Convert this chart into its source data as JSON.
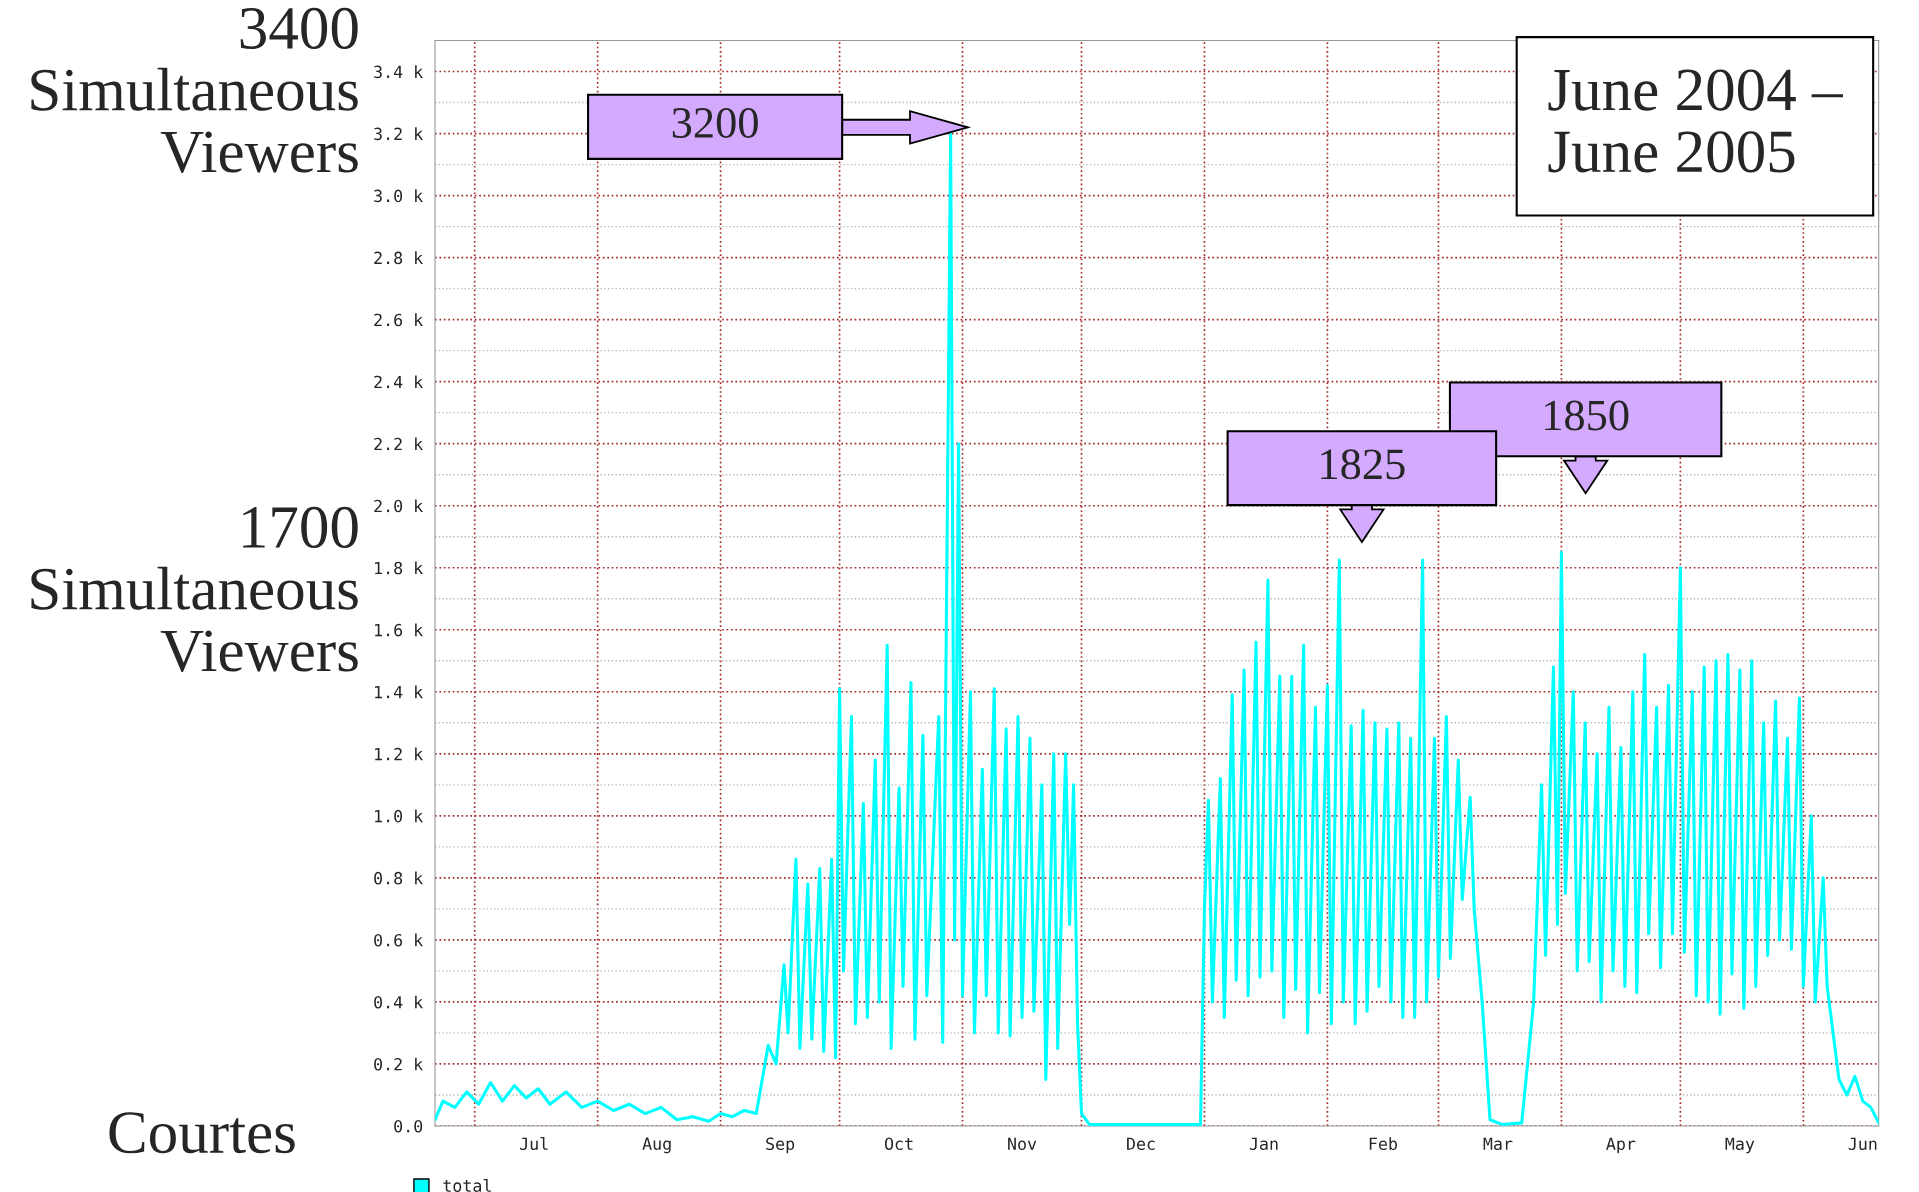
{
  "chart_data": {
    "type": "line",
    "xlim": [
      "2004-06-21",
      "2005-06-20"
    ],
    "xticks": [
      {
        "value": "2004-07-01",
        "label": null
      },
      {
        "value": "2004-07-16",
        "label": "Jul"
      },
      {
        "value": "2004-08-01",
        "label": null
      },
      {
        "value": "2004-08-16",
        "label": "Aug"
      },
      {
        "value": "2004-09-01",
        "label": null
      },
      {
        "value": "2004-09-16",
        "label": "Sep"
      },
      {
        "value": "2004-10-01",
        "label": null
      },
      {
        "value": "2004-10-16",
        "label": "Oct"
      },
      {
        "value": "2004-11-01",
        "label": null
      },
      {
        "value": "2004-11-16",
        "label": "Nov"
      },
      {
        "value": "2004-12-01",
        "label": null
      },
      {
        "value": "2004-12-16",
        "label": "Dec"
      },
      {
        "value": "2005-01-01",
        "label": null
      },
      {
        "value": "2005-01-16",
        "label": "Jan"
      },
      {
        "value": "2005-02-01",
        "label": null
      },
      {
        "value": "2005-02-15",
        "label": "Feb"
      },
      {
        "value": "2005-03-01",
        "label": null
      },
      {
        "value": "2005-03-16",
        "label": "Mar"
      },
      {
        "value": "2005-04-01",
        "label": null
      },
      {
        "value": "2005-04-16",
        "label": "Apr"
      },
      {
        "value": "2005-05-01",
        "label": null
      },
      {
        "value": "2005-05-16",
        "label": "May"
      },
      {
        "value": "2005-06-01",
        "label": null
      },
      {
        "value": "2005-06-16",
        "label": "Jun"
      }
    ],
    "ylim": [
      0,
      3500
    ],
    "yticks": [
      {
        "value": 0,
        "label": "0.0"
      },
      {
        "value": 100,
        "label": null
      },
      {
        "value": 200,
        "label": "0.2 k"
      },
      {
        "value": 300,
        "label": null
      },
      {
        "value": 400,
        "label": "0.4 k"
      },
      {
        "value": 500,
        "label": null
      },
      {
        "value": 600,
        "label": "0.6 k"
      },
      {
        "value": 700,
        "label": null
      },
      {
        "value": 800,
        "label": "0.8 k"
      },
      {
        "value": 900,
        "label": null
      },
      {
        "value": 1000,
        "label": "1.0 k"
      },
      {
        "value": 1100,
        "label": null
      },
      {
        "value": 1200,
        "label": "1.2 k"
      },
      {
        "value": 1300,
        "label": null
      },
      {
        "value": 1400,
        "label": "1.4 k"
      },
      {
        "value": 1500,
        "label": null
      },
      {
        "value": 1600,
        "label": "1.6 k"
      },
      {
        "value": 1700,
        "label": null
      },
      {
        "value": 1800,
        "label": "1.8 k"
      },
      {
        "value": 1900,
        "label": null
      },
      {
        "value": 2000,
        "label": "2.0 k"
      },
      {
        "value": 2100,
        "label": null
      },
      {
        "value": 2200,
        "label": "2.2 k"
      },
      {
        "value": 2300,
        "label": null
      },
      {
        "value": 2400,
        "label": "2.4 k"
      },
      {
        "value": 2500,
        "label": null
      },
      {
        "value": 2600,
        "label": "2.6 k"
      },
      {
        "value": 2700,
        "label": null
      },
      {
        "value": 2800,
        "label": "2.8 k"
      },
      {
        "value": 2900,
        "label": null
      },
      {
        "value": 3000,
        "label": "3.0 k"
      },
      {
        "value": 3100,
        "label": null
      },
      {
        "value": 3200,
        "label": "3.2 k"
      },
      {
        "value": 3300,
        "label": null
      },
      {
        "value": 3400,
        "label": "3.4 k"
      }
    ],
    "grid": true,
    "legend": "bottom left",
    "annotations": [
      "3400\nSimultaneous\nViewers",
      "1700\nSimultaneous\nViewers",
      "June 2004 –\nJune 2005",
      "Courtes",
      "3200",
      "1825",
      "1850"
    ],
    "series": [
      {
        "name": "total",
        "color": "#00ffff",
        "x": [
          "2004-06-21",
          "2004-06-23",
          "2004-06-26",
          "2004-06-29",
          "2004-07-02",
          "2004-07-05",
          "2004-07-08",
          "2004-07-11",
          "2004-07-14",
          "2004-07-17",
          "2004-07-20",
          "2004-07-24",
          "2004-07-28",
          "2004-08-01",
          "2004-08-05",
          "2004-08-09",
          "2004-08-13",
          "2004-08-17",
          "2004-08-21",
          "2004-08-25",
          "2004-08-29",
          "2004-09-01",
          "2004-09-04",
          "2004-09-07",
          "2004-09-10",
          "2004-09-13",
          "2004-09-15",
          "2004-09-17",
          "2004-09-18",
          "2004-09-20",
          "2004-09-21",
          "2004-09-23",
          "2004-09-24",
          "2004-09-26",
          "2004-09-27",
          "2004-09-29",
          "2004-09-30",
          "2004-10-01",
          "2004-10-02",
          "2004-10-04",
          "2004-10-05",
          "2004-10-07",
          "2004-10-08",
          "2004-10-10",
          "2004-10-11",
          "2004-10-13",
          "2004-10-14",
          "2004-10-16",
          "2004-10-17",
          "2004-10-19",
          "2004-10-20",
          "2004-10-22",
          "2004-10-23",
          "2004-10-26",
          "2004-10-27",
          "2004-10-29",
          "2004-10-30",
          "2004-10-31",
          "2004-11-01",
          "2004-11-03",
          "2004-11-04",
          "2004-11-06",
          "2004-11-07",
          "2004-11-09",
          "2004-11-10",
          "2004-11-12",
          "2004-11-13",
          "2004-11-15",
          "2004-11-16",
          "2004-11-18",
          "2004-11-19",
          "2004-11-21",
          "2004-11-22",
          "2004-11-24",
          "2004-11-25",
          "2004-11-27",
          "2004-11-28",
          "2004-11-29",
          "2004-11-30",
          "2004-12-01",
          "2004-12-03",
          "2004-12-15",
          "2004-12-31",
          "2005-01-01",
          "2005-01-02",
          "2005-01-03",
          "2005-01-05",
          "2005-01-06",
          "2005-01-08",
          "2005-01-09",
          "2005-01-11",
          "2005-01-12",
          "2005-01-14",
          "2005-01-15",
          "2005-01-17",
          "2005-01-18",
          "2005-01-20",
          "2005-01-21",
          "2005-01-23",
          "2005-01-24",
          "2005-01-26",
          "2005-01-27",
          "2005-01-29",
          "2005-01-30",
          "2005-02-01",
          "2005-02-02",
          "2005-02-04",
          "2005-02-05",
          "2005-02-07",
          "2005-02-08",
          "2005-02-10",
          "2005-02-11",
          "2005-02-13",
          "2005-02-14",
          "2005-02-16",
          "2005-02-17",
          "2005-02-19",
          "2005-02-20",
          "2005-02-22",
          "2005-02-23",
          "2005-02-25",
          "2005-02-26",
          "2005-02-28",
          "2005-03-01",
          "2005-03-03",
          "2005-03-04",
          "2005-03-06",
          "2005-03-07",
          "2005-03-09",
          "2005-03-10",
          "2005-03-12",
          "2005-03-14",
          "2005-03-17",
          "2005-03-22",
          "2005-03-25",
          "2005-03-27",
          "2005-03-28",
          "2005-03-30",
          "2005-03-31",
          "2005-04-01",
          "2005-04-02",
          "2005-04-04",
          "2005-04-05",
          "2005-04-07",
          "2005-04-08",
          "2005-04-10",
          "2005-04-11",
          "2005-04-13",
          "2005-04-14",
          "2005-04-16",
          "2005-04-17",
          "2005-04-19",
          "2005-04-20",
          "2005-04-22",
          "2005-04-23",
          "2005-04-25",
          "2005-04-26",
          "2005-04-28",
          "2005-04-29",
          "2005-05-01",
          "2005-05-02",
          "2005-05-04",
          "2005-05-05",
          "2005-05-07",
          "2005-05-08",
          "2005-05-10",
          "2005-05-11",
          "2005-05-13",
          "2005-05-14",
          "2005-05-16",
          "2005-05-17",
          "2005-05-19",
          "2005-05-20",
          "2005-05-22",
          "2005-05-23",
          "2005-05-25",
          "2005-05-26",
          "2005-05-28",
          "2005-05-29",
          "2005-05-31",
          "2005-06-01",
          "2005-06-03",
          "2005-06-04",
          "2005-06-06",
          "2005-06-07",
          "2005-06-09",
          "2005-06-10",
          "2005-06-12",
          "2005-06-14",
          "2005-06-16",
          "2005-06-18",
          "2005-06-20"
        ],
        "values": [
          20,
          80,
          60,
          110,
          70,
          140,
          80,
          130,
          90,
          120,
          70,
          110,
          60,
          80,
          50,
          70,
          40,
          60,
          20,
          30,
          15,
          40,
          30,
          50,
          40,
          260,
          200,
          520,
          300,
          860,
          250,
          780,
          280,
          830,
          240,
          860,
          220,
          1410,
          500,
          1320,
          330,
          1040,
          350,
          1180,
          400,
          1550,
          250,
          1090,
          450,
          1430,
          280,
          1260,
          420,
          1320,
          270,
          3200,
          600,
          2200,
          420,
          1400,
          300,
          1150,
          420,
          1410,
          300,
          1280,
          290,
          1320,
          350,
          1250,
          370,
          1100,
          150,
          1200,
          250,
          1200,
          650,
          1100,
          330,
          40,
          5,
          5,
          5,
          700,
          1050,
          400,
          1120,
          350,
          1390,
          470,
          1470,
          420,
          1560,
          480,
          1760,
          500,
          1450,
          350,
          1450,
          440,
          1550,
          300,
          1350,
          430,
          1420,
          330,
          1825,
          400,
          1290,
          330,
          1340,
          370,
          1300,
          450,
          1280,
          400,
          1300,
          350,
          1250,
          350,
          1825,
          400,
          1250,
          480,
          1320,
          540,
          1180,
          730,
          1060,
          700,
          400,
          20,
          5,
          10,
          400,
          1100,
          550,
          1480,
          650,
          1850,
          750,
          1400,
          500,
          1300,
          530,
          1200,
          400,
          1350,
          500,
          1220,
          450,
          1400,
          430,
          1520,
          620,
          1350,
          510,
          1420,
          620,
          1800,
          560,
          1400,
          420,
          1480,
          400,
          1500,
          360,
          1520,
          490,
          1470,
          380,
          1500,
          450,
          1300,
          550,
          1370,
          600,
          1250,
          570,
          1380,
          450,
          1000,
          400,
          800,
          450,
          250,
          150,
          100,
          160,
          80,
          60,
          10
        ]
      }
    ]
  }
}
